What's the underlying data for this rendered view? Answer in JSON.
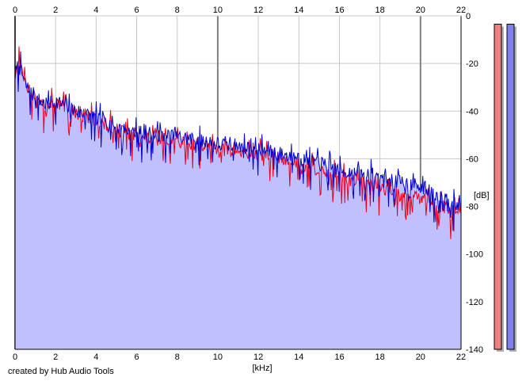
{
  "chart_data": {
    "type": "area",
    "title": "",
    "xlabel": "[kHz]",
    "ylabel": "[dB]",
    "xlim": [
      0,
      22
    ],
    "ylim": [
      -140,
      0
    ],
    "x_ticks": [
      "0",
      "2",
      "4",
      "6",
      "8",
      "10",
      "12",
      "14",
      "16",
      "18",
      "20",
      "22"
    ],
    "y_ticks": [
      "0",
      "-20",
      "-40",
      "-60",
      "-80",
      "-100",
      "-120",
      "-140"
    ],
    "grid": true,
    "legend": "none",
    "series": [
      {
        "color": "#e8001c",
        "x": [
          0,
          0.2,
          0.5,
          1,
          1.5,
          2,
          3,
          4,
          5,
          6,
          7,
          8,
          9,
          10,
          11,
          12,
          13,
          14,
          15,
          16,
          17,
          18,
          19,
          20,
          21,
          22
        ],
        "y": [
          -25,
          -18,
          -28,
          -36,
          -38,
          -37,
          -41,
          -44,
          -48,
          -51,
          -52,
          -53,
          -54,
          -56,
          -57,
          -58,
          -60,
          -62,
          -65,
          -68,
          -70,
          -72,
          -75,
          -77,
          -80,
          -83
        ]
      },
      {
        "color": "#0000cc",
        "x": [
          0,
          0.2,
          0.5,
          1,
          1.5,
          2,
          3,
          4,
          5,
          6,
          7,
          8,
          9,
          10,
          11,
          12,
          13,
          14,
          15,
          16,
          17,
          18,
          19,
          20,
          21,
          22
        ],
        "y": [
          -25,
          -20,
          -29,
          -35,
          -37,
          -36,
          -40,
          -43,
          -47,
          -49,
          -50,
          -51,
          -52,
          -54,
          -55,
          -56,
          -58,
          -59,
          -62,
          -65,
          -66,
          -68,
          -70,
          -72,
          -76,
          -80
        ]
      }
    ],
    "level_meters": [
      {
        "color": "#f08080",
        "level_db": -3.5
      },
      {
        "color": "#8080f0",
        "level_db": -3.5
      }
    ]
  },
  "footer": {
    "credit": "created by Hub Audio Tools"
  },
  "colors": {
    "fill": "#c0c0ff",
    "grid": "#c8c8c8",
    "grid_major": "#808080",
    "axis": "#000000"
  }
}
